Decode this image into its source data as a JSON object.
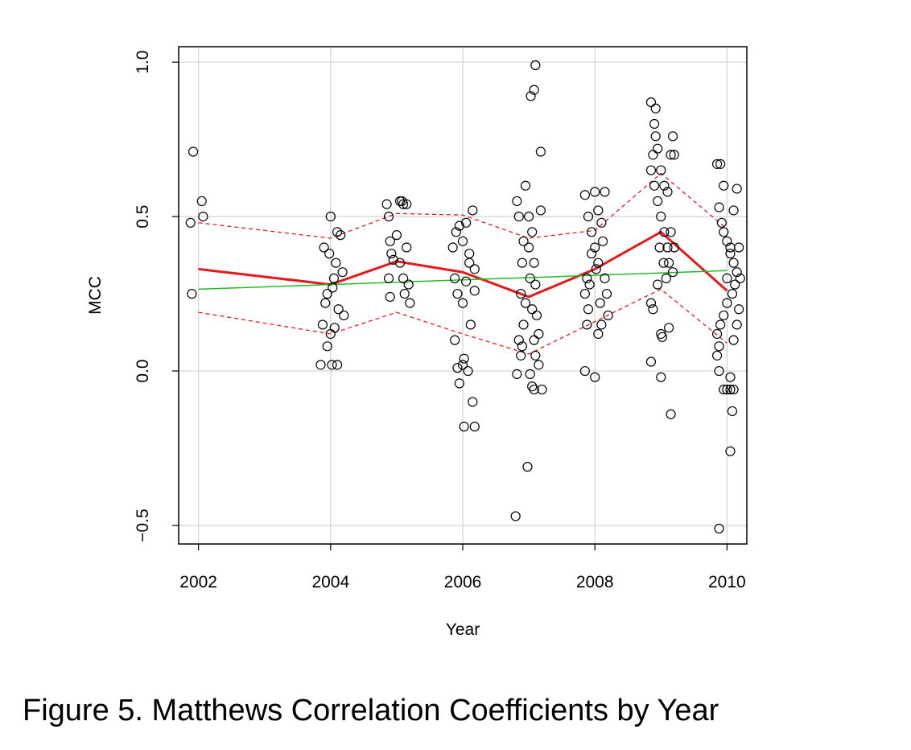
{
  "caption": "Figure 5. Matthews Correlation Coefficients by Year",
  "chart_data": {
    "type": "scatter",
    "xlabel": "Year",
    "ylabel": "MCC",
    "xlim": [
      2001.7,
      2010.3
    ],
    "ylim": [
      -0.56,
      1.05
    ],
    "x_ticks": [
      2002,
      2004,
      2006,
      2008,
      2010
    ],
    "x_tick_labels": [
      "2002",
      "2004",
      "2006",
      "2008",
      "2010"
    ],
    "y_ticks": [
      -0.5,
      0.0,
      0.5,
      1.0
    ],
    "y_tick_labels": [
      "−0.5",
      "0.0",
      "0.5",
      "1.0"
    ],
    "grid": true,
    "colors": {
      "points": "#000000",
      "mean": "#e31a1c",
      "band": "#e31a1c",
      "trend": "#22bb22",
      "grid": "#d3d3d3"
    },
    "points": [
      [
        2001.88,
        0.48
      ],
      [
        2001.92,
        0.71
      ],
      [
        2001.9,
        0.25
      ],
      [
        2002.05,
        0.55
      ],
      [
        2002.07,
        0.5
      ],
      [
        2003.85,
        0.02
      ],
      [
        2003.9,
        0.4
      ],
      [
        2003.95,
        0.25
      ],
      [
        2004.0,
        0.5
      ],
      [
        2004.05,
        0.3
      ],
      [
        2004.1,
        0.45
      ],
      [
        2003.88,
        0.15
      ],
      [
        2003.92,
        0.22
      ],
      [
        2004.0,
        0.12
      ],
      [
        2004.02,
        0.02
      ],
      [
        2004.08,
        0.35
      ],
      [
        2004.12,
        0.2
      ],
      [
        2004.15,
        0.44
      ],
      [
        2004.18,
        0.32
      ],
      [
        2004.2,
        0.18
      ],
      [
        2003.95,
        0.08
      ],
      [
        2004.03,
        0.27
      ],
      [
        2004.1,
        0.02
      ],
      [
        2003.98,
        0.38
      ],
      [
        2004.06,
        0.14
      ],
      [
        2004.85,
        0.54
      ],
      [
        2004.88,
        0.5
      ],
      [
        2004.9,
        0.42
      ],
      [
        2004.92,
        0.38
      ],
      [
        2004.88,
        0.3
      ],
      [
        2004.9,
        0.24
      ],
      [
        2004.95,
        0.36
      ],
      [
        2005.0,
        0.44
      ],
      [
        2005.05,
        0.55
      ],
      [
        2005.1,
        0.54
      ],
      [
        2005.15,
        0.54
      ],
      [
        2005.05,
        0.35
      ],
      [
        2005.1,
        0.3
      ],
      [
        2005.12,
        0.25
      ],
      [
        2005.15,
        0.4
      ],
      [
        2005.2,
        0.22
      ],
      [
        2005.18,
        0.28
      ],
      [
        2005.08,
        0.55
      ],
      [
        2005.85,
        0.4
      ],
      [
        2005.9,
        0.45
      ],
      [
        2005.95,
        0.47
      ],
      [
        2006.0,
        0.42
      ],
      [
        2006.05,
        0.48
      ],
      [
        2006.1,
        0.38
      ],
      [
        2006.15,
        0.52
      ],
      [
        2006.18,
        0.33
      ],
      [
        2005.88,
        0.3
      ],
      [
        2005.92,
        0.25
      ],
      [
        2006.0,
        0.22
      ],
      [
        2006.05,
        0.29
      ],
      [
        2005.88,
        0.1
      ],
      [
        2005.92,
        0.01
      ],
      [
        2006.0,
        0.02
      ],
      [
        2005.95,
        -0.04
      ],
      [
        2006.02,
        0.04
      ],
      [
        2006.08,
        0.0
      ],
      [
        2006.12,
        0.15
      ],
      [
        2006.18,
        0.26
      ],
      [
        2006.15,
        -0.1
      ],
      [
        2006.02,
        -0.18
      ],
      [
        2006.18,
        -0.18
      ],
      [
        2006.1,
        0.35
      ],
      [
        2006.8,
        -0.47
      ],
      [
        2006.98,
        -0.31
      ],
      [
        2006.82,
        0.55
      ],
      [
        2006.85,
        0.5
      ],
      [
        2006.9,
        0.35
      ],
      [
        2006.88,
        0.25
      ],
      [
        2006.92,
        0.15
      ],
      [
        2006.85,
        0.1
      ],
      [
        2006.88,
        0.05
      ],
      [
        2006.82,
        -0.01
      ],
      [
        2006.95,
        0.6
      ],
      [
        2007.0,
        0.5
      ],
      [
        2007.05,
        0.45
      ],
      [
        2007.02,
        0.3
      ],
      [
        2007.05,
        0.2
      ],
      [
        2007.08,
        0.1
      ],
      [
        2007.1,
        0.05
      ],
      [
        2007.02,
        -0.01
      ],
      [
        2007.0,
        0.4
      ],
      [
        2007.08,
        0.35
      ],
      [
        2007.1,
        0.28
      ],
      [
        2007.12,
        0.18
      ],
      [
        2007.15,
        0.12
      ],
      [
        2007.18,
        0.52
      ],
      [
        2007.05,
        -0.05
      ],
      [
        2007.08,
        -0.06
      ],
      [
        2007.2,
        -0.06
      ],
      [
        2007.18,
        0.71
      ],
      [
        2007.03,
        0.89
      ],
      [
        2007.08,
        0.91
      ],
      [
        2007.1,
        0.99
      ],
      [
        2006.95,
        0.22
      ],
      [
        2006.92,
        0.42
      ],
      [
        2007.15,
        0.02
      ],
      [
        2006.9,
        0.08
      ],
      [
        2007.85,
        0.57
      ],
      [
        2007.9,
        0.5
      ],
      [
        2007.95,
        0.45
      ],
      [
        2008.0,
        0.4
      ],
      [
        2008.05,
        0.35
      ],
      [
        2007.88,
        0.3
      ],
      [
        2007.92,
        0.28
      ],
      [
        2007.85,
        0.25
      ],
      [
        2007.9,
        0.2
      ],
      [
        2008.0,
        0.58
      ],
      [
        2008.05,
        0.52
      ],
      [
        2008.1,
        0.48
      ],
      [
        2008.12,
        0.42
      ],
      [
        2008.15,
        0.3
      ],
      [
        2008.18,
        0.25
      ],
      [
        2008.2,
        0.18
      ],
      [
        2008.1,
        0.15
      ],
      [
        2008.05,
        0.12
      ],
      [
        2007.88,
        0.15
      ],
      [
        2007.85,
        0.0
      ],
      [
        2008.0,
        -0.02
      ],
      [
        2008.15,
        0.58
      ],
      [
        2007.95,
        0.38
      ],
      [
        2008.08,
        0.22
      ],
      [
        2008.02,
        0.33
      ],
      [
        2008.85,
        0.87
      ],
      [
        2008.9,
        0.8
      ],
      [
        2008.92,
        0.76
      ],
      [
        2008.95,
        0.72
      ],
      [
        2008.88,
        0.7
      ],
      [
        2008.85,
        0.65
      ],
      [
        2008.9,
        0.6
      ],
      [
        2008.95,
        0.55
      ],
      [
        2009.0,
        0.5
      ],
      [
        2009.05,
        0.45
      ],
      [
        2009.1,
        0.4
      ],
      [
        2009.12,
        0.35
      ],
      [
        2009.08,
        0.3
      ],
      [
        2009.0,
        0.65
      ],
      [
        2009.05,
        0.6
      ],
      [
        2009.1,
        0.58
      ],
      [
        2009.15,
        0.7
      ],
      [
        2009.18,
        0.76
      ],
      [
        2009.2,
        0.7
      ],
      [
        2009.15,
        0.45
      ],
      [
        2009.2,
        0.4
      ],
      [
        2009.18,
        0.32
      ],
      [
        2008.95,
        0.28
      ],
      [
        2008.85,
        0.22
      ],
      [
        2008.88,
        0.2
      ],
      [
        2009.0,
        0.12
      ],
      [
        2009.02,
        0.11
      ],
      [
        2009.12,
        0.14
      ],
      [
        2008.85,
        0.03
      ],
      [
        2009.0,
        -0.02
      ],
      [
        2009.15,
        -0.14
      ],
      [
        2008.92,
        0.85
      ],
      [
        2008.98,
        0.4
      ],
      [
        2009.04,
        0.35
      ],
      [
        2009.85,
        0.67
      ],
      [
        2009.9,
        0.67
      ],
      [
        2009.95,
        0.6
      ],
      [
        2009.88,
        0.53
      ],
      [
        2009.92,
        0.48
      ],
      [
        2009.95,
        0.45
      ],
      [
        2010.0,
        0.42
      ],
      [
        2010.05,
        0.38
      ],
      [
        2010.1,
        0.35
      ],
      [
        2010.15,
        0.32
      ],
      [
        2010.12,
        0.28
      ],
      [
        2010.08,
        0.25
      ],
      [
        2010.0,
        0.22
      ],
      [
        2009.95,
        0.18
      ],
      [
        2009.9,
        0.15
      ],
      [
        2009.85,
        0.12
      ],
      [
        2009.88,
        0.08
      ],
      [
        2009.85,
        0.05
      ],
      [
        2009.88,
        0.0
      ],
      [
        2009.95,
        -0.06
      ],
      [
        2010.0,
        -0.06
      ],
      [
        2010.05,
        -0.06
      ],
      [
        2010.1,
        -0.06
      ],
      [
        2010.05,
        -0.02
      ],
      [
        2010.08,
        -0.13
      ],
      [
        2010.05,
        -0.26
      ],
      [
        2009.88,
        -0.51
      ],
      [
        2010.15,
        0.59
      ],
      [
        2010.1,
        0.52
      ],
      [
        2010.18,
        0.4
      ],
      [
        2010.2,
        0.3
      ],
      [
        2010.18,
        0.2
      ],
      [
        2010.15,
        0.15
      ],
      [
        2010.1,
        0.1
      ],
      [
        2010.05,
        0.4
      ],
      [
        2010.0,
        0.3
      ]
    ],
    "series": [
      {
        "x": [
          2002,
          2004,
          2005,
          2006,
          2007,
          2008,
          2009,
          2010
        ],
        "y": [
          0.33,
          0.28,
          0.355,
          0.32,
          0.24,
          0.33,
          0.45,
          0.26
        ],
        "style": "solid-thick",
        "color": "#e31a1c"
      },
      {
        "x": [
          2002,
          2004,
          2005,
          2006,
          2007,
          2008,
          2009,
          2010
        ],
        "y": [
          0.48,
          0.43,
          0.51,
          0.505,
          0.43,
          0.455,
          0.64,
          0.46
        ],
        "style": "dashed",
        "color": "#e31a1c"
      },
      {
        "x": [
          2002,
          2004,
          2005,
          2006,
          2007,
          2008,
          2009,
          2010
        ],
        "y": [
          0.19,
          0.12,
          0.19,
          0.12,
          0.055,
          0.16,
          0.265,
          0.09
        ],
        "style": "dashed",
        "color": "#e31a1c"
      },
      {
        "x": [
          2002,
          2010
        ],
        "y": [
          0.265,
          0.325
        ],
        "style": "solid-thin",
        "color": "#22bb22"
      }
    ]
  }
}
